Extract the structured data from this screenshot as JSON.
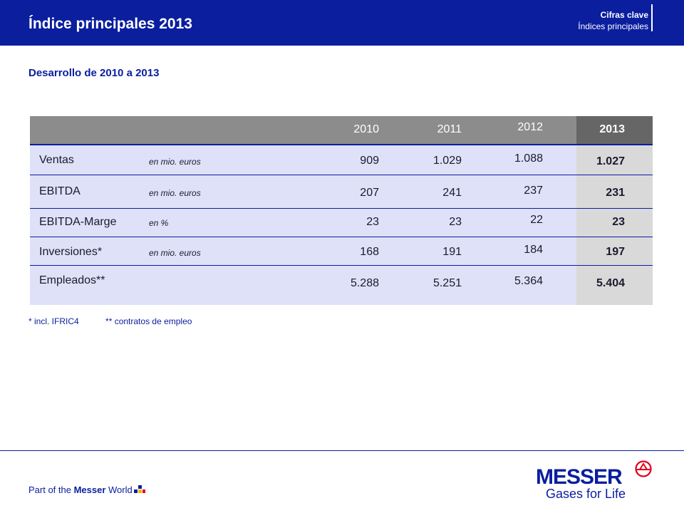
{
  "header": {
    "title": "Índice principales 2013",
    "breadcrumb_main": "Cifras clave",
    "breadcrumb_sub": "Índices principales"
  },
  "subtitle": "Desarrollo de 2010 a 2013",
  "table": {
    "years": [
      "2010",
      "2011",
      "2012",
      "2013"
    ],
    "rows": [
      {
        "label": "Ventas",
        "unit": "en mio. euros",
        "values": [
          "909",
          "1.029",
          "1.088",
          "1.027"
        ]
      },
      {
        "label": "EBITDA",
        "unit": "en mio. euros",
        "values": [
          "207",
          "241",
          "237",
          "231"
        ]
      },
      {
        "label": "EBITDA-Marge",
        "unit": "en %",
        "values": [
          "23",
          "23",
          "22",
          "23"
        ]
      },
      {
        "label": "Inversiones*",
        "unit": "en mio. euros",
        "values": [
          "168",
          "191",
          "184",
          "197"
        ]
      },
      {
        "label": "Empleados**",
        "unit": "",
        "values": [
          "5.288",
          "5.251",
          "5.364",
          "5.404"
        ]
      }
    ]
  },
  "footnotes": [
    "* incl. IFRIC4",
    "** contratos de empleo"
  ],
  "footer": {
    "tagline_prefix": "Part of the ",
    "tagline_bold": "Messer",
    "tagline_suffix": " World",
    "logo_word": "MESSER",
    "logo_slogan": "Gases for Life"
  },
  "colors": {
    "brand_blue": "#0a1e9e",
    "header_grey": "#8c8c8c",
    "highlight_grey": "#666666",
    "row_lavender": "#dfe1f8",
    "logo_red": "#e2001a",
    "square_yellow": "#f5b800"
  }
}
